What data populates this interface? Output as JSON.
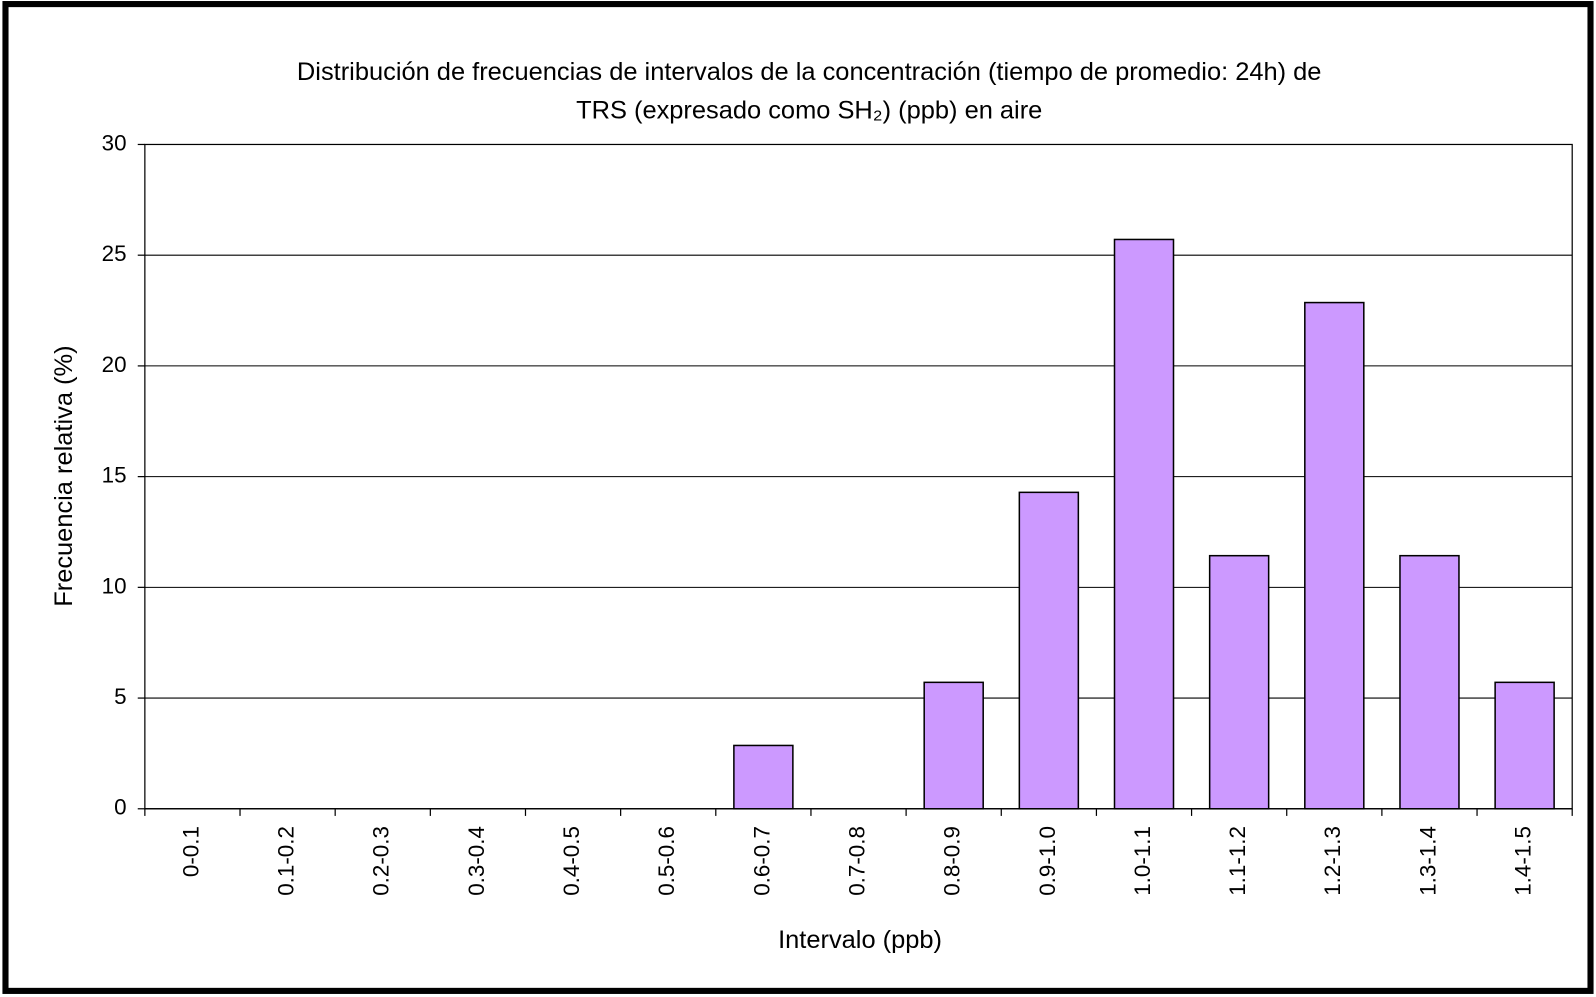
{
  "chart_data": {
    "type": "bar",
    "title": [
      "Distribución de frecuencias de intervalos de la concentración (tiempo de promedio: 24h) de",
      "TRS (expresado como SH₂) (ppb) en aire"
    ],
    "x_label": "Intervalo (ppb)",
    "y_label": "Frecuencia relativa (%)",
    "categories": [
      "0-0.1",
      "0.1-0.2",
      "0.2-0.3",
      "0.3-0.4",
      "0.4-0.5",
      "0.5-0.6",
      "0.6-0.7",
      "0.7-0.8",
      "0.8-0.9",
      "0.9-1.0",
      "1.0-1.1",
      "1.1-1.2",
      "1.2-1.3",
      "1.3-1.4",
      "1.4-1.5"
    ],
    "values": [
      0,
      0,
      0,
      0,
      0,
      0,
      2.86,
      0,
      5.71,
      14.29,
      25.71,
      11.43,
      22.86,
      11.43,
      5.71
    ],
    "color": "#cc99ff",
    "ylim": [
      0,
      30
    ],
    "yticks": [
      0,
      5,
      10,
      15,
      20,
      25,
      30
    ],
    "grid": true
  }
}
